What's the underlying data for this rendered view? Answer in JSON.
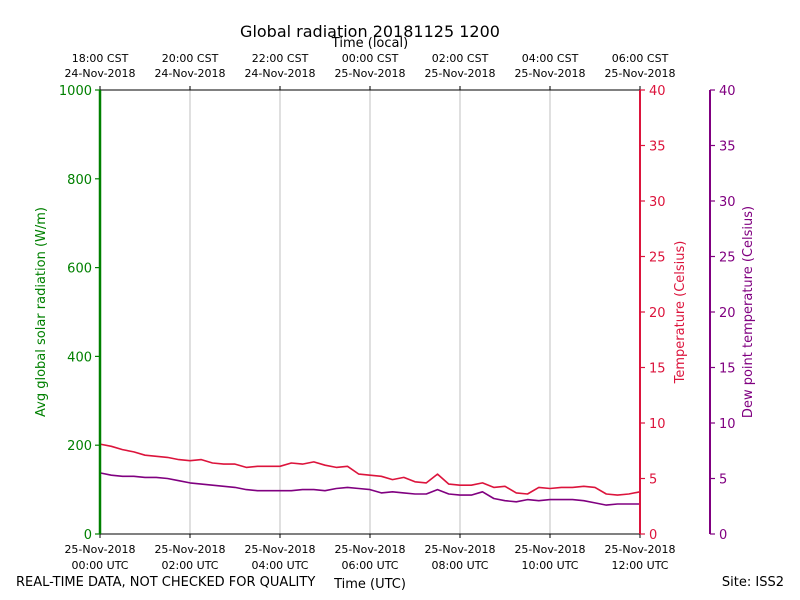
{
  "chart_data": {
    "type": "line",
    "title": "Global radiation 20181125 1200",
    "xlabel": "Time (UTC)",
    "xlabel_top": "Time (local)",
    "x_ticks_bottom": [
      [
        "25-Nov-2018",
        "00:00 UTC"
      ],
      [
        "25-Nov-2018",
        "02:00 UTC"
      ],
      [
        "25-Nov-2018",
        "04:00 UTC"
      ],
      [
        "25-Nov-2018",
        "06:00 UTC"
      ],
      [
        "25-Nov-2018",
        "08:00 UTC"
      ],
      [
        "25-Nov-2018",
        "10:00 UTC"
      ],
      [
        "25-Nov-2018",
        "12:00 UTC"
      ]
    ],
    "x_ticks_top": [
      [
        "18:00 CST",
        "24-Nov-2018"
      ],
      [
        "20:00 CST",
        "24-Nov-2018"
      ],
      [
        "22:00 CST",
        "24-Nov-2018"
      ],
      [
        "00:00 CST",
        "25-Nov-2018"
      ],
      [
        "02:00 CST",
        "25-Nov-2018"
      ],
      [
        "04:00 CST",
        "25-Nov-2018"
      ],
      [
        "06:00 CST",
        "25-Nov-2018"
      ]
    ],
    "x_tick_hours": [
      0,
      2,
      4,
      6,
      8,
      10,
      12
    ],
    "xlim": [
      0,
      12
    ],
    "grid": "vertical",
    "axes": [
      {
        "side": "left",
        "label": "Avg global solar radiation (W/m)",
        "ylim": [
          0,
          1000
        ],
        "ticks": [
          0,
          200,
          400,
          600,
          800,
          1000
        ],
        "color": "#008000"
      },
      {
        "side": "right",
        "label": "Temperature (Celsius)",
        "ylim": [
          0,
          40
        ],
        "ticks": [
          0,
          5,
          10,
          15,
          20,
          25,
          30,
          35,
          40
        ],
        "color": "#dc143c"
      },
      {
        "side": "right-outer",
        "label": "Dew point temperature (Celsius)",
        "ylim": [
          0,
          40
        ],
        "ticks": [
          0,
          5,
          10,
          15,
          20,
          25,
          30,
          35,
          40
        ],
        "color": "#800080"
      }
    ],
    "series": [
      {
        "axis": 1,
        "color": "#dc143c",
        "x": [
          0,
          0.25,
          0.5,
          0.75,
          1.0,
          1.25,
          1.5,
          1.75,
          2.0,
          2.25,
          2.5,
          2.75,
          3.0,
          3.25,
          3.5,
          3.75,
          4.0,
          4.25,
          4.5,
          4.75,
          5.0,
          5.25,
          5.5,
          5.75,
          6.0,
          6.25,
          6.5,
          6.75,
          7.0,
          7.25,
          7.5,
          7.75,
          8.0,
          8.25,
          8.5,
          8.75,
          9.0,
          9.25,
          9.5,
          9.75,
          10.0,
          10.25,
          10.5,
          10.75,
          11.0,
          11.25,
          11.5,
          11.75,
          12.0
        ],
        "values": [
          8.1,
          7.9,
          7.6,
          7.4,
          7.1,
          7.0,
          6.9,
          6.7,
          6.6,
          6.7,
          6.4,
          6.3,
          6.3,
          6.0,
          6.1,
          6.1,
          6.1,
          6.4,
          6.3,
          6.5,
          6.2,
          6.0,
          6.1,
          5.4,
          5.3,
          5.2,
          4.9,
          5.1,
          4.7,
          4.6,
          5.4,
          4.5,
          4.4,
          4.4,
          4.6,
          4.2,
          4.3,
          3.7,
          3.6,
          4.2,
          4.1,
          4.2,
          4.2,
          4.3,
          4.2,
          3.6,
          3.5,
          3.6,
          3.8
        ]
      },
      {
        "axis": 2,
        "color": "#800080",
        "x": [
          0,
          0.25,
          0.5,
          0.75,
          1.0,
          1.25,
          1.5,
          1.75,
          2.0,
          2.25,
          2.5,
          2.75,
          3.0,
          3.25,
          3.5,
          3.75,
          4.0,
          4.25,
          4.5,
          4.75,
          5.0,
          5.25,
          5.5,
          5.75,
          6.0,
          6.25,
          6.5,
          6.75,
          7.0,
          7.25,
          7.5,
          7.75,
          8.0,
          8.25,
          8.5,
          8.75,
          9.0,
          9.25,
          9.5,
          9.75,
          10.0,
          10.25,
          10.5,
          10.75,
          11.0,
          11.25,
          11.5,
          11.75,
          12.0
        ],
        "values": [
          5.5,
          5.3,
          5.2,
          5.2,
          5.1,
          5.1,
          5.0,
          4.8,
          4.6,
          4.5,
          4.4,
          4.3,
          4.2,
          4.0,
          3.9,
          3.9,
          3.9,
          3.9,
          4.0,
          4.0,
          3.9,
          4.1,
          4.2,
          4.1,
          4.0,
          3.7,
          3.8,
          3.7,
          3.6,
          3.6,
          4.0,
          3.6,
          3.5,
          3.5,
          3.8,
          3.2,
          3.0,
          2.9,
          3.1,
          3.0,
          3.1,
          3.1,
          3.1,
          3.0,
          2.8,
          2.6,
          2.7,
          2.7,
          2.7
        ]
      }
    ]
  },
  "footer": {
    "left": "REAL-TIME DATA, NOT CHECKED FOR QUALITY",
    "right": "Site: ISS2"
  }
}
